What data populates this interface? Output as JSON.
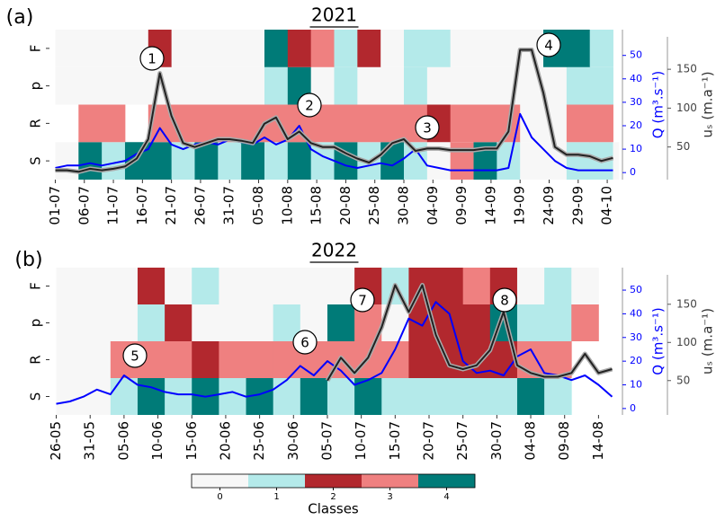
{
  "chart_data": [
    {
      "type": "heatmap-line",
      "panel": "(a)",
      "title": "2021",
      "x": [
        0,
        2,
        4,
        6,
        8,
        10,
        12,
        14,
        16,
        18,
        20,
        22,
        24,
        26,
        28,
        30,
        32,
        34,
        36,
        38,
        40,
        42,
        44,
        46,
        48,
        50,
        52,
        54,
        56,
        58,
        60,
        62,
        64,
        66,
        68,
        70,
        72,
        74,
        76,
        78,
        80,
        82,
        84,
        86,
        88,
        90,
        92,
        94,
        96
      ],
      "xlim": [
        -1,
        97
      ],
      "xticks": [
        {
          "value": 0,
          "label": "01-07"
        },
        {
          "value": 5,
          "label": "06-07"
        },
        {
          "value": 10,
          "label": "11-07"
        },
        {
          "value": 15,
          "label": "16-07"
        },
        {
          "value": 20,
          "label": "21-07"
        },
        {
          "value": 25,
          "label": "26-07"
        },
        {
          "value": 30,
          "label": "31-07"
        },
        {
          "value": 35,
          "label": "05-08"
        },
        {
          "value": 40,
          "label": "10-08"
        },
        {
          "value": 45,
          "label": "15-08"
        },
        {
          "value": 50,
          "label": "20-08"
        },
        {
          "value": 55,
          "label": "25-08"
        },
        {
          "value": 60,
          "label": "30-08"
        },
        {
          "value": 65,
          "label": "04-09"
        },
        {
          "value": 70,
          "label": "09-09"
        },
        {
          "value": 75,
          "label": "14-09"
        },
        {
          "value": 80,
          "label": "19-09"
        },
        {
          "value": 85,
          "label": "24-09"
        },
        {
          "value": 90,
          "label": "29-09"
        },
        {
          "value": 95,
          "label": "04-10"
        }
      ],
      "heatmap": {
        "rows": [
          "S",
          "R",
          "p",
          "F"
        ],
        "bins": [
          0,
          4,
          8,
          12,
          16,
          20,
          24,
          28,
          32,
          36,
          40,
          44,
          48,
          52,
          56,
          60,
          64,
          68,
          72,
          76,
          80,
          84,
          88,
          92,
          96,
          100
        ],
        "values": [
          [
            0,
            4,
            1,
            4,
            4,
            1,
            4,
            1,
            4,
            1,
            4,
            1,
            4,
            1,
            4,
            1,
            0,
            3,
            4,
            1,
            0,
            0,
            1,
            1,
            0
          ],
          [
            null,
            3,
            3,
            null,
            3,
            3,
            3,
            3,
            3,
            3,
            3,
            3,
            3,
            3,
            3,
            3,
            2,
            3,
            3,
            3,
            0,
            0,
            3,
            3,
            null
          ],
          [
            0,
            0,
            0,
            0,
            0,
            0,
            0,
            0,
            0,
            1,
            4,
            0,
            1,
            0,
            0,
            1,
            0,
            0,
            0,
            0,
            0,
            0,
            1,
            1,
            null
          ],
          [
            0,
            0,
            0,
            0,
            2,
            0,
            0,
            0,
            0,
            4,
            2,
            3,
            1,
            2,
            0,
            1,
            1,
            0,
            0,
            0,
            0,
            4,
            4,
            1,
            null
          ]
        ]
      },
      "series": [
        {
          "color": "#0000ff",
          "values": [
            2,
            3,
            3,
            4,
            3,
            4,
            5,
            8,
            10,
            19,
            12,
            10,
            12,
            13,
            12,
            14,
            13,
            12,
            15,
            12,
            14,
            20,
            10,
            7,
            5,
            3,
            2,
            3,
            4,
            3,
            6,
            10,
            3,
            2,
            1,
            1,
            1,
            1,
            1,
            2,
            25,
            15,
            10,
            5,
            2,
            1,
            1,
            1,
            1
          ]
        },
        {
          "color": "#222222",
          "axis": "y2",
          "values": [
            20,
            20,
            18,
            22,
            20,
            22,
            25,
            35,
            60,
            145,
            90,
            55,
            50,
            55,
            60,
            60,
            58,
            55,
            80,
            88,
            60,
            70,
            55,
            50,
            50,
            42,
            35,
            30,
            40,
            55,
            60,
            45,
            48,
            48,
            46,
            46,
            46,
            48,
            48,
            70,
            175,
            175,
            120,
            50,
            40,
            40,
            38,
            32,
            36
          ]
        }
      ],
      "ylabel": "Q (m³.s⁻¹)",
      "ylim": [
        -3,
        61
      ],
      "yticks": [
        0,
        10,
        20,
        30,
        40,
        50
      ],
      "y2label": "uₛ (m.a⁻¹)",
      "y2lim": [
        8,
        201
      ],
      "y2ticks": [
        50,
        100,
        150
      ],
      "annotations": [
        "1",
        "2",
        "3",
        "4"
      ]
    },
    {
      "type": "heatmap-line",
      "panel": "(b)",
      "title": "2022",
      "x": [
        0,
        2,
        4,
        6,
        8,
        10,
        12,
        14,
        16,
        18,
        20,
        22,
        24,
        26,
        28,
        30,
        32,
        34,
        36,
        38,
        40,
        42,
        44,
        46,
        48,
        50,
        52,
        54,
        56,
        58,
        60,
        62,
        64,
        66,
        68,
        70,
        72,
        74,
        76,
        78,
        80,
        82
      ],
      "xlim": [
        -1,
        83
      ],
      "xticks": [
        {
          "value": 0,
          "label": "26-05"
        },
        {
          "value": 5,
          "label": "31-05"
        },
        {
          "value": 10,
          "label": "05-06"
        },
        {
          "value": 15,
          "label": "10-06"
        },
        {
          "value": 20,
          "label": "15-06"
        },
        {
          "value": 25,
          "label": "20-06"
        },
        {
          "value": 30,
          "label": "25-06"
        },
        {
          "value": 35,
          "label": "30-06"
        },
        {
          "value": 40,
          "label": "05-07"
        },
        {
          "value": 45,
          "label": "10-07"
        },
        {
          "value": 50,
          "label": "15-07"
        },
        {
          "value": 55,
          "label": "20-07"
        },
        {
          "value": 60,
          "label": "25-07"
        },
        {
          "value": 65,
          "label": "30-07"
        },
        {
          "value": 70,
          "label": "04-08"
        },
        {
          "value": 75,
          "label": "09-08"
        },
        {
          "value": 80,
          "label": "14-08"
        }
      ],
      "heatmap": {
        "rows": [
          "S",
          "R",
          "p",
          "F"
        ],
        "bins": [
          0,
          4,
          8,
          12,
          16,
          20,
          24,
          28,
          32,
          36,
          40,
          44,
          48,
          52,
          56,
          60,
          64,
          68,
          72,
          76,
          80,
          84
        ],
        "values": [
          [
            0,
            0,
            1,
            4,
            1,
            4,
            1,
            4,
            1,
            4,
            1,
            4,
            1,
            1,
            1,
            1,
            1,
            4,
            1,
            null,
            null
          ],
          [
            0,
            0,
            3,
            3,
            3,
            2,
            3,
            3,
            3,
            3,
            3,
            3,
            3,
            2,
            2,
            2,
            2,
            3,
            3,
            null,
            null
          ],
          [
            0,
            0,
            0,
            1,
            2,
            0,
            0,
            0,
            1,
            0,
            4,
            3,
            0,
            2,
            2,
            2,
            4,
            1,
            1,
            3,
            null
          ],
          [
            0,
            0,
            0,
            2,
            0,
            1,
            0,
            0,
            0,
            0,
            0,
            2,
            1,
            2,
            2,
            3,
            2,
            0,
            1,
            0,
            null
          ]
        ]
      },
      "series": [
        {
          "color": "#0000ff",
          "values": [
            2,
            3,
            5,
            8,
            6,
            14,
            10,
            9,
            7,
            6,
            6,
            5,
            6,
            7,
            5,
            6,
            8,
            12,
            18,
            14,
            20,
            16,
            10,
            12,
            15,
            25,
            38,
            35,
            45,
            40,
            20,
            15,
            16,
            14,
            22,
            25,
            15,
            14,
            12,
            14,
            10,
            5
          ]
        },
        {
          "color": "#222222",
          "axis": "y2",
          "values": [
            null,
            null,
            null,
            null,
            null,
            null,
            null,
            null,
            null,
            null,
            null,
            null,
            null,
            null,
            null,
            null,
            null,
            null,
            null,
            null,
            50,
            80,
            60,
            80,
            120,
            175,
            140,
            175,
            110,
            70,
            65,
            70,
            90,
            140,
            70,
            60,
            55,
            55,
            60,
            85,
            60,
            65
          ]
        }
      ],
      "ylabel": "Q (m³.s⁻¹)",
      "ylim": [
        -2.7,
        59.5
      ],
      "yticks": [
        0,
        10,
        20,
        30,
        40,
        50
      ],
      "y2label": "uₛ (m.a⁻¹)",
      "y2lim": [
        5,
        198
      ],
      "y2ticks": [
        50,
        100,
        150
      ],
      "annotations": [
        "5",
        "6",
        "7",
        "8"
      ]
    }
  ],
  "colorbar": {
    "label": "Classes",
    "ticks": [
      0,
      1,
      2,
      3,
      4
    ],
    "colors": [
      "#f7f7f7",
      "#b4eaea",
      "#b2282e",
      "#ef8080",
      "#007b78"
    ]
  }
}
